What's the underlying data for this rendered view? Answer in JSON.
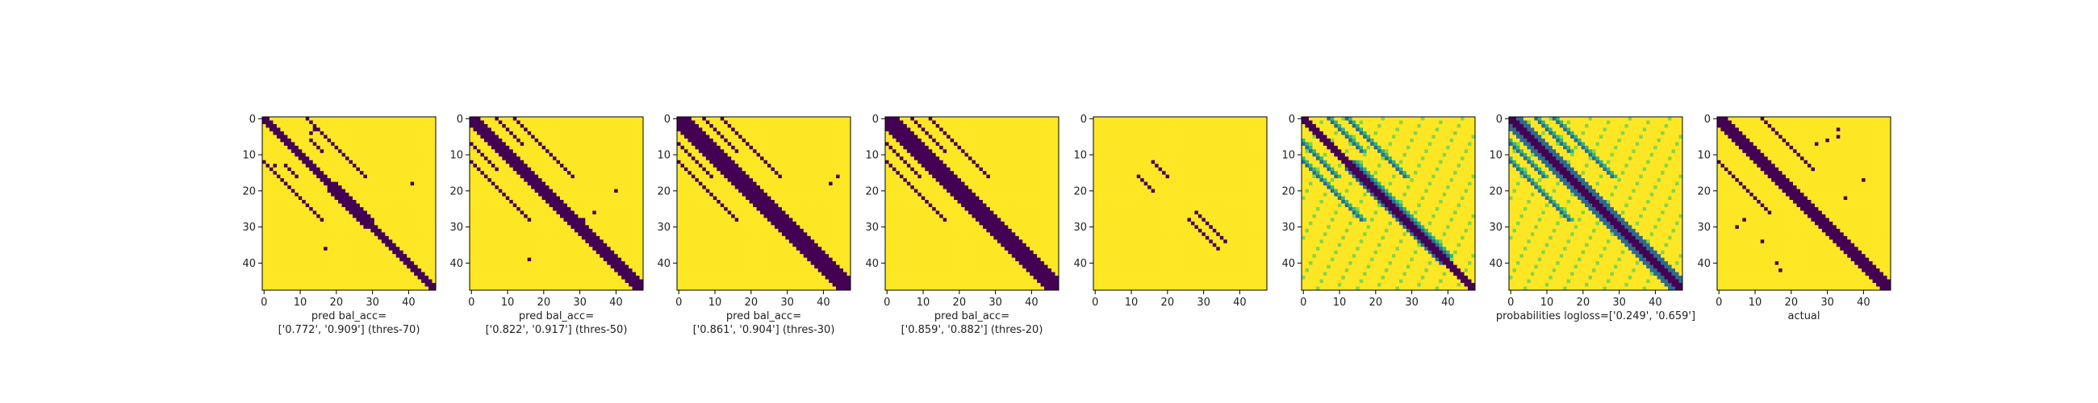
{
  "figure": {
    "panels": [
      {
        "id": "p1",
        "caption": [
          "pred bal_acc=",
          "['0.772', '0.909'] (thres-70)"
        ],
        "kind": "binary",
        "width": 1,
        "off": [
          [
            -12,
            2,
            28
          ],
          [
            -7,
            13,
            16
          ],
          [
            -2,
            20,
            30
          ]
        ],
        "speckles": [
          [
            3,
            14
          ],
          [
            4,
            13
          ],
          [
            13,
            3
          ],
          [
            14,
            2
          ],
          [
            18,
            41
          ],
          [
            36,
            17
          ]
        ]
      },
      {
        "id": "p2",
        "caption": [
          "pred bal_acc=",
          "['0.822', '0.917'] (thres-50)"
        ],
        "kind": "binary",
        "width": 2,
        "off": [
          [
            -12,
            2,
            28
          ],
          [
            -7,
            4,
            14
          ],
          [
            -2,
            26,
            34
          ]
        ],
        "speckles": [
          [
            5,
            3
          ],
          [
            20,
            40
          ],
          [
            26,
            34
          ],
          [
            28,
            31
          ],
          [
            39,
            16
          ]
        ]
      },
      {
        "id": "p3",
        "caption": [
          "pred bal_acc=",
          "['0.861', '0.904'] (thres-30)"
        ],
        "kind": "binary",
        "width": 3,
        "off": [
          [
            -12,
            0,
            28
          ],
          [
            -7,
            0,
            16
          ],
          [
            -2,
            20,
            38
          ],
          [
            -16,
            2,
            12
          ]
        ],
        "speckles": [
          [
            16,
            44
          ],
          [
            18,
            42
          ]
        ]
      },
      {
        "id": "p4",
        "caption": [
          "pred bal_acc=",
          "['0.859', '0.882'] (thres-20)"
        ],
        "kind": "binary",
        "width": 3,
        "off": [
          [
            -12,
            0,
            28
          ],
          [
            -7,
            0,
            16
          ],
          [
            -2,
            14,
            40
          ],
          [
            -16,
            2,
            14
          ]
        ],
        "speckles": []
      },
      {
        "id": "p5",
        "caption": [
          ""
        ],
        "kind": "binary",
        "width": -1,
        "off": [
          [
            -12,
            0,
            4
          ],
          [
            -7,
            0,
            3
          ],
          [
            -2,
            28,
            36
          ],
          [
            4,
            12,
            16
          ]
        ],
        "speckles": []
      },
      {
        "id": "p6",
        "caption": [
          ""
        ],
        "kind": "prob",
        "width": 1,
        "off": [
          [
            -12,
            0,
            28
          ],
          [
            -7,
            0,
            16
          ],
          [
            -2,
            14,
            40
          ],
          [
            -16,
            2,
            14
          ]
        ],
        "speckles": []
      },
      {
        "id": "p7",
        "caption": [
          "probabilities logloss=['0.249', '0.659']"
        ],
        "kind": "prob",
        "width": 3,
        "off": [
          [
            -12,
            0,
            28
          ],
          [
            -7,
            0,
            16
          ],
          [
            -2,
            14,
            40
          ],
          [
            -16,
            2,
            14
          ]
        ],
        "speckles": []
      },
      {
        "id": "p8",
        "caption": [
          "actual"
        ],
        "kind": "binary",
        "width": 2,
        "off": [
          [
            -12,
            2,
            26
          ],
          [
            -2,
            26,
            34
          ],
          [
            -20,
            6,
            10
          ]
        ],
        "speckles": [
          [
            7,
            27
          ],
          [
            6,
            30
          ],
          [
            5,
            33
          ],
          [
            3,
            33
          ],
          [
            30,
            5
          ],
          [
            28,
            7
          ],
          [
            34,
            12
          ],
          [
            40,
            16
          ],
          [
            42,
            17
          ],
          [
            25,
            27
          ],
          [
            22,
            35
          ],
          [
            17,
            40
          ]
        ]
      }
    ]
  },
  "chart_data": [
    {
      "type": "heatmap",
      "title": "",
      "xlabel": "",
      "caption": "pred bal_acc= ['0.772', '0.909'] (thres-70)",
      "xlim": [
        -0.5,
        47.5
      ],
      "ylim": [
        47.5,
        -0.5
      ],
      "xticks": [
        0,
        10,
        20,
        30,
        40
      ],
      "yticks": [
        0,
        10,
        20,
        30,
        40
      ],
      "values_range": [
        0,
        1
      ],
      "colormap": "viridis"
    },
    {
      "type": "heatmap",
      "title": "",
      "xlabel": "",
      "caption": "pred bal_acc= ['0.822', '0.917'] (thres-50)",
      "xlim": [
        -0.5,
        47.5
      ],
      "ylim": [
        47.5,
        -0.5
      ],
      "xticks": [
        0,
        10,
        20,
        30,
        40
      ],
      "yticks": [
        0,
        10,
        20,
        30,
        40
      ],
      "values_range": [
        0,
        1
      ],
      "colormap": "viridis"
    },
    {
      "type": "heatmap",
      "title": "",
      "xlabel": "",
      "caption": "pred bal_acc= ['0.861', '0.904'] (thres-30)",
      "xlim": [
        -0.5,
        47.5
      ],
      "ylim": [
        47.5,
        -0.5
      ],
      "xticks": [
        0,
        10,
        20,
        30,
        40
      ],
      "yticks": [
        0,
        10,
        20,
        30,
        40
      ],
      "values_range": [
        0,
        1
      ],
      "colormap": "viridis"
    },
    {
      "type": "heatmap",
      "title": "",
      "xlabel": "",
      "caption": "pred bal_acc= ['0.859', '0.882'] (thres-20)",
      "xlim": [
        -0.5,
        47.5
      ],
      "ylim": [
        47.5,
        -0.5
      ],
      "xticks": [
        0,
        10,
        20,
        30,
        40
      ],
      "yticks": [
        0,
        10,
        20,
        30,
        40
      ],
      "values_range": [
        0,
        1
      ],
      "colormap": "viridis"
    },
    {
      "type": "heatmap",
      "title": "",
      "xlabel": "",
      "caption": "",
      "xlim": [
        -0.5,
        47.5
      ],
      "ylim": [
        47.5,
        -0.5
      ],
      "xticks": [
        0,
        10,
        20,
        30,
        40
      ],
      "yticks": [
        0,
        10,
        20,
        30,
        40
      ],
      "values_range": [
        0,
        1
      ],
      "colormap": "viridis"
    },
    {
      "type": "heatmap",
      "title": "",
      "xlabel": "",
      "caption": "",
      "xlim": [
        -0.5,
        47.5
      ],
      "ylim": [
        47.5,
        -0.5
      ],
      "xticks": [
        0,
        10,
        20,
        30,
        40
      ],
      "yticks": [
        0,
        10,
        20,
        30,
        40
      ],
      "values_range": [
        0,
        1
      ],
      "colormap": "viridis"
    },
    {
      "type": "heatmap",
      "title": "",
      "xlabel": "",
      "caption": "probabilities logloss=['0.249', '0.659']",
      "xlim": [
        -0.5,
        47.5
      ],
      "ylim": [
        47.5,
        -0.5
      ],
      "xticks": [
        0,
        10,
        20,
        30,
        40
      ],
      "yticks": [
        0,
        10,
        20,
        30,
        40
      ],
      "values_range": [
        0,
        1
      ],
      "colormap": "viridis"
    },
    {
      "type": "heatmap",
      "title": "",
      "xlabel": "",
      "caption": "actual",
      "xlim": [
        -0.5,
        47.5
      ],
      "ylim": [
        47.5,
        -0.5
      ],
      "xticks": [
        0,
        10,
        20,
        30,
        40
      ],
      "yticks": [
        0,
        10,
        20,
        30,
        40
      ],
      "values_range": [
        0,
        1
      ],
      "colormap": "viridis"
    }
  ]
}
